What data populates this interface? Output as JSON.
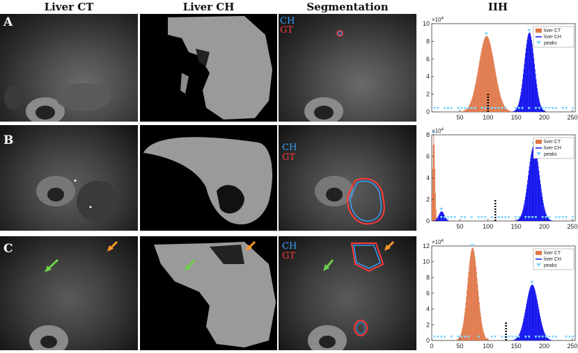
{
  "headers": {
    "liver_ct": "Liver CT",
    "liver_ch": "Liver CH",
    "segmentation": "Segmentation",
    "iih": "IIH"
  },
  "rows": [
    {
      "label": "A",
      "seg_ch": "CH",
      "seg_gt": "GT"
    },
    {
      "label": "B",
      "seg_ch": "CH",
      "seg_gt": "GT"
    },
    {
      "label": "C",
      "seg_ch": "CH",
      "seg_gt": "GT"
    }
  ],
  "colors": {
    "ch": "#3aa0ff",
    "gt": "#ff3a3a",
    "liver_ct": "#e0784a",
    "liver_ch": "#1010ee",
    "peaks": "#7fd6ff",
    "arrow_green": "#6fd04a",
    "arrow_orange": "#ff9a2a"
  },
  "chart_data": [
    {
      "type": "bar",
      "exponent_label": "×10",
      "exponent_power": "4",
      "xlim": [
        0,
        255
      ],
      "ylim": [
        0,
        10
      ],
      "xticks": [
        "50",
        "100",
        "150",
        "200",
        "250"
      ],
      "yticks": [
        "0",
        "2",
        "4",
        "6",
        "8",
        "10"
      ],
      "legend": [
        "liver CT",
        "liver CH",
        "peaks"
      ],
      "series": [
        {
          "name": "liver CT",
          "center": 97,
          "sigma": 14,
          "peak": 8.6
        },
        {
          "name": "liver CH",
          "center": 173,
          "sigma": 9,
          "peak": 9.0
        }
      ],
      "threshold_x": 100,
      "threshold_top": 2.2
    },
    {
      "type": "bar",
      "exponent_label": "×10",
      "exponent_power": "4",
      "xlim": [
        0,
        255
      ],
      "ylim": [
        0,
        8
      ],
      "xticks": [
        "50",
        "100",
        "150",
        "200",
        "250"
      ],
      "yticks": [
        "0",
        "2",
        "4",
        "6",
        "8"
      ],
      "legend": [
        "liver CT",
        "liver CH",
        "peaks"
      ],
      "series": [
        {
          "name": "liver CT",
          "center": 3,
          "sigma": 2,
          "peak": 8
        },
        {
          "name": "liver CH",
          "center": 181,
          "sigma": 10,
          "peak": 7.0
        },
        {
          "name": "liver CH small",
          "center": 17,
          "sigma": 5,
          "peak": 0.9
        }
      ],
      "threshold_x": 113,
      "threshold_top": 2.0
    },
    {
      "type": "bar",
      "exponent_label": "×10",
      "exponent_power": "4",
      "xlim": [
        0,
        255
      ],
      "ylim": [
        0,
        12
      ],
      "xticks": [
        "0",
        "50",
        "100",
        "150",
        "200",
        "250"
      ],
      "yticks": [
        "0",
        "2",
        "4",
        "6",
        "8",
        "10",
        "12"
      ],
      "legend": [
        "liver CT",
        "liver CH",
        "peaks"
      ],
      "series": [
        {
          "name": "liver CT",
          "center": 72,
          "sigma": 9,
          "peak": 11.8
        },
        {
          "name": "liver CH",
          "center": 178,
          "sigma": 11,
          "peak": 7.1
        }
      ],
      "threshold_x": 132,
      "threshold_top": 2.4
    }
  ]
}
